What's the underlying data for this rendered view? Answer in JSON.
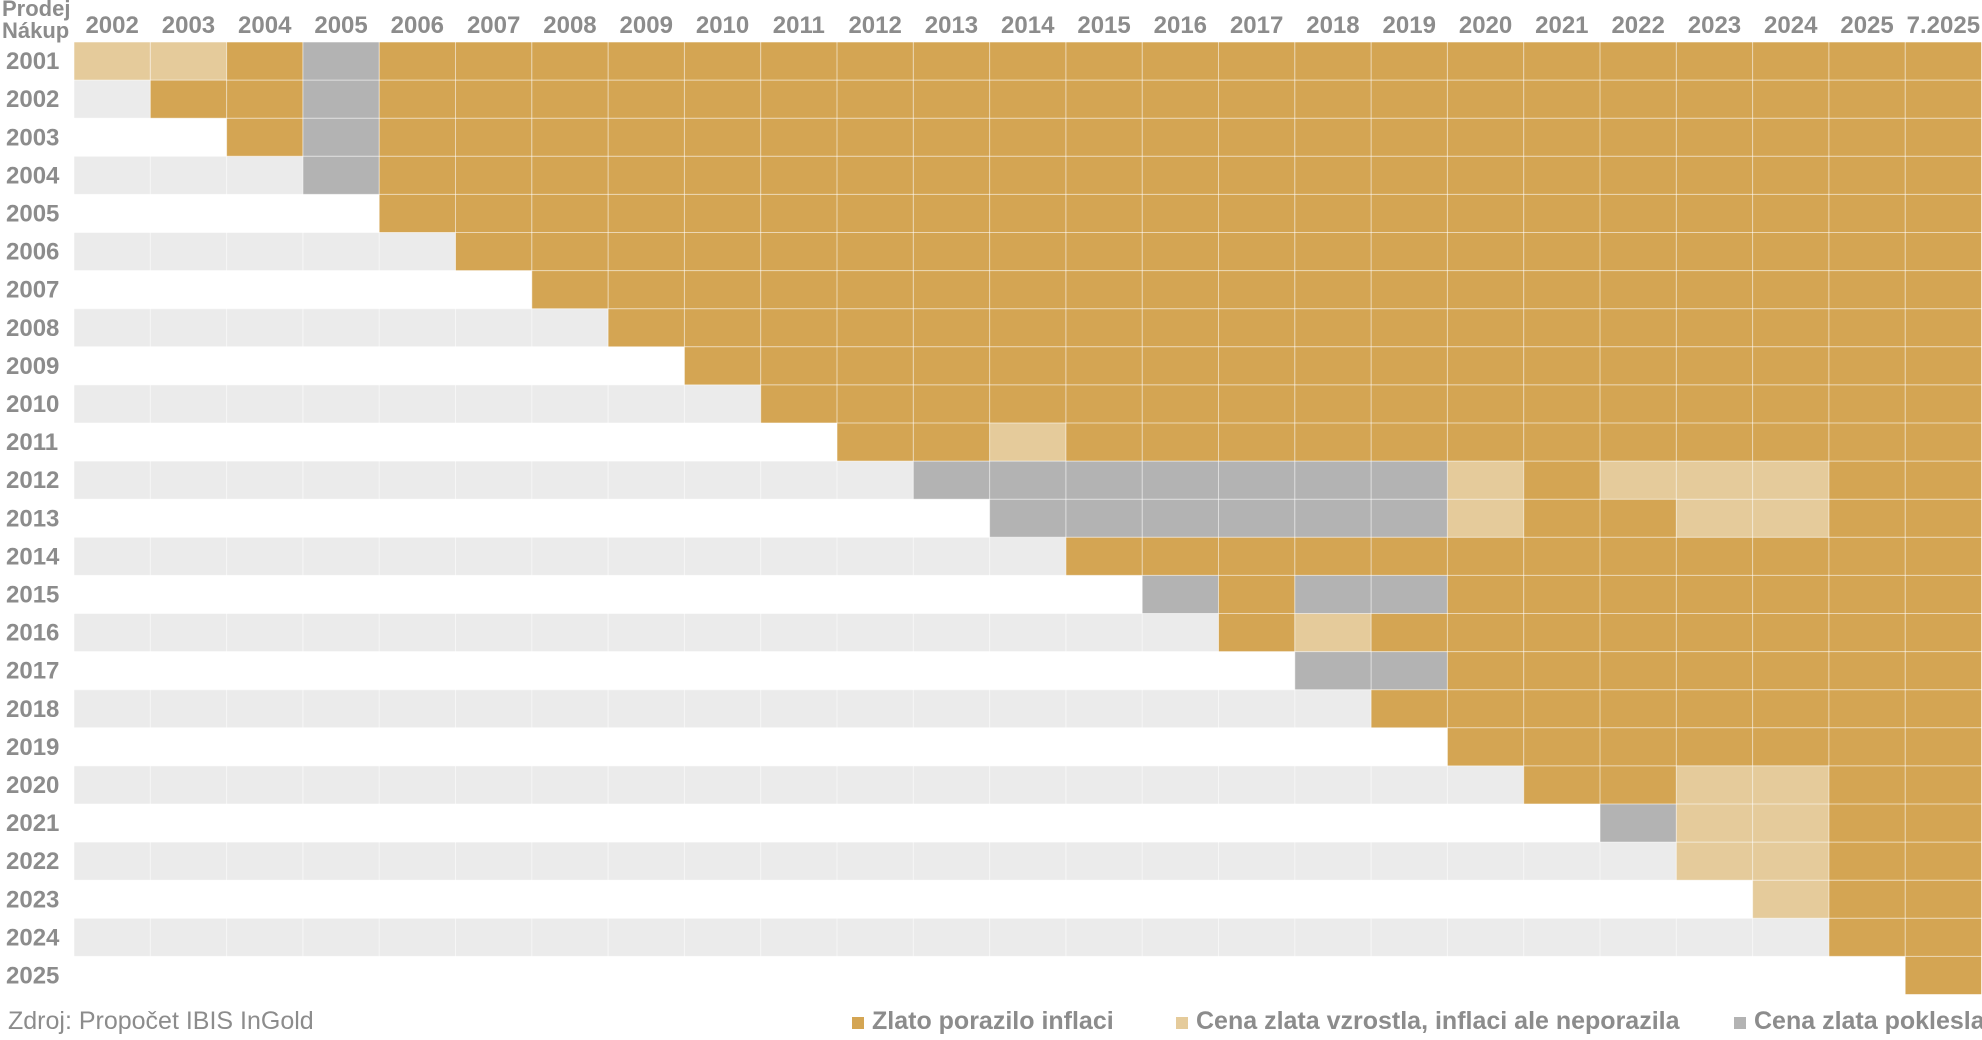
{
  "chart_data": {
    "type": "heatmap",
    "corner_top_label": "Prodej",
    "corner_bottom_label": "Nákup",
    "columns": [
      "2002",
      "2003",
      "2004",
      "2005",
      "2006",
      "2007",
      "2008",
      "2009",
      "2010",
      "2011",
      "2012",
      "2013",
      "2014",
      "2015",
      "2016",
      "2017",
      "2018",
      "2019",
      "2020",
      "2021",
      "2022",
      "2023",
      "2024",
      "2025",
      "7.2025"
    ],
    "rows": [
      "2001",
      "2002",
      "2003",
      "2004",
      "2005",
      "2006",
      "2007",
      "2008",
      "2009",
      "2010",
      "2011",
      "2012",
      "2013",
      "2014",
      "2015",
      "2016",
      "2017",
      "2018",
      "2019",
      "2020",
      "2021",
      "2022",
      "2023",
      "2024",
      "2025"
    ],
    "legend": [
      {
        "code": "G",
        "label": "Zlato porazilo inflaci",
        "color": "#d4a553"
      },
      {
        "code": "L",
        "label": "Cena zlata vzrostla, inflaci ale neporazila",
        "color": "#e5cb9b"
      },
      {
        "code": "D",
        "label": "Cena zlata poklesla",
        "color": "#b3b3b3"
      }
    ],
    "empty_colors": [
      "#ffffff",
      "#ebebeb"
    ],
    "grid_line_color": "#ffffff",
    "cells": [
      "LLGDGGGGGGGGGGGGGGGGGGGGG",
      "-GGDGGGGGGGGGGGGGGGGGGGGG",
      "--GDGGGGGGGGGGGGGGGGGGGGG",
      "---DGGGGGGGGGGGGGGGGGGGGG",
      "----GGGGGGGGGGGGGGGGGGGGG",
      "-----GGGGGGGGGGGGGGGGGGGG",
      "------GGGGGGGGGGGGGGGGGGG",
      "-------GGGGGGGGGGGGGGGGGG",
      "--------GGGGGGGGGGGGGGGGG",
      "---------GGGGGGGGGGGGGGGG",
      "----------GGLGGGGGGGGGGGG",
      "-----------DDDDDDDLGLLLGG",
      "------------DDDDDDLGGLLGG",
      "-------------GGGGGGGGGGGG",
      "--------------DGDDGGGGGGG",
      "---------------GLGGGGGGGG",
      "----------------DDGGGGGGG",
      "-----------------GGGGGGGG",
      "------------------GGGGGGG",
      "-------------------GGLLGG",
      "--------------------DLLGG",
      "---------------------LLGG",
      "----------------------LGG",
      "-----------------------GG",
      "------------------------G"
    ]
  },
  "footer": {
    "source": "Zdroj: Propočet IBIS InGold"
  }
}
